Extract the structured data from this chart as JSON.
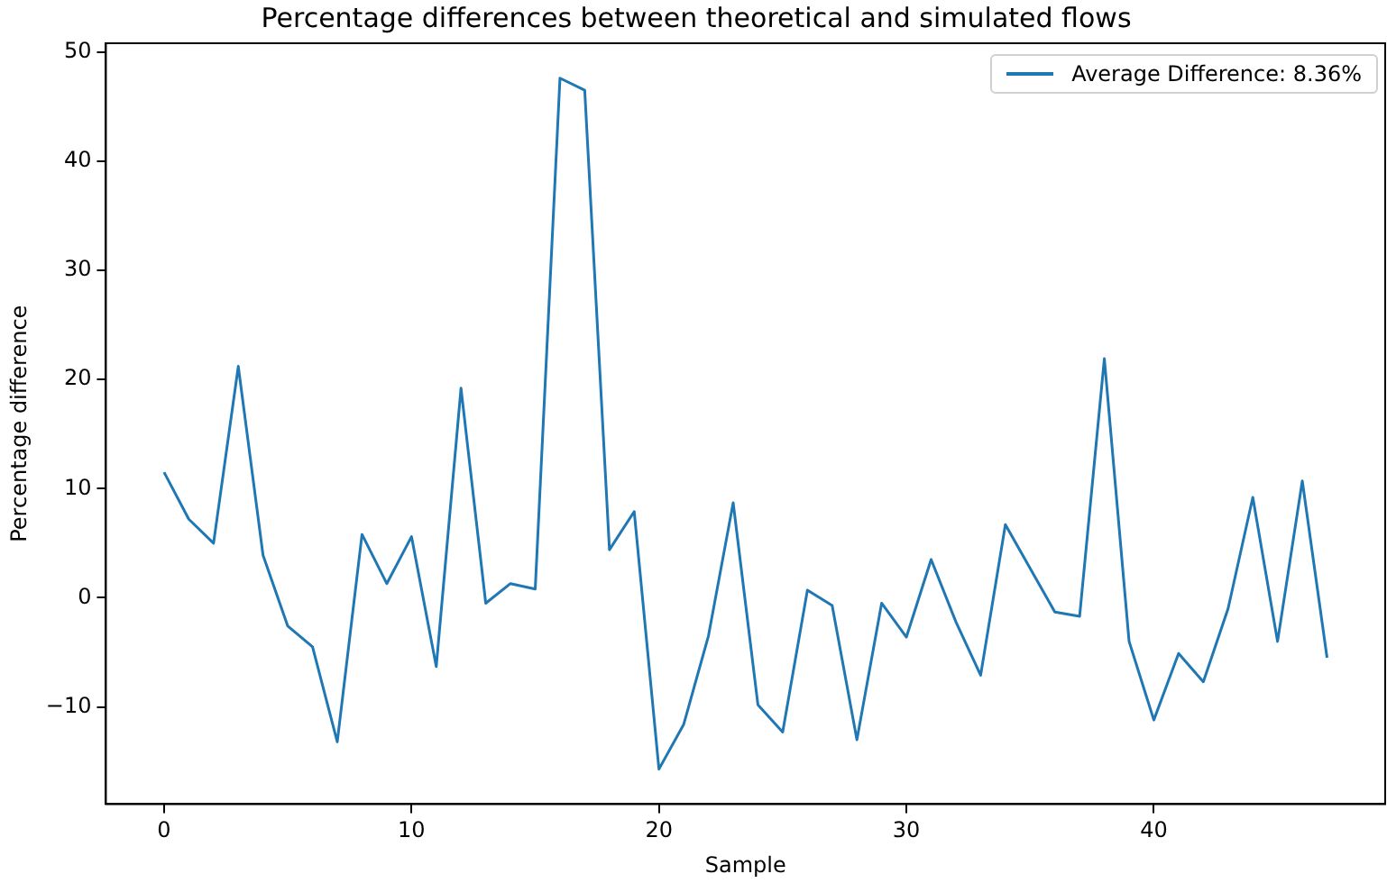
{
  "chart_data": {
    "type": "line",
    "title": "Percentage differences between theoretical and simulated flows",
    "xlabel": "Sample",
    "ylabel": "Percentage difference",
    "x": [
      0,
      1,
      2,
      3,
      4,
      5,
      6,
      7,
      8,
      9,
      10,
      11,
      12,
      13,
      14,
      15,
      16,
      17,
      18,
      19,
      20,
      21,
      22,
      23,
      24,
      25,
      26,
      27,
      28,
      29,
      30,
      31,
      32,
      33,
      34,
      35,
      36,
      37,
      38,
      39,
      40,
      41,
      42,
      43,
      44,
      45,
      46,
      47
    ],
    "series": [
      {
        "name": "Average Difference: 8.36%",
        "color": "#1f77b4",
        "values": [
          11.5,
          7.2,
          5.0,
          21.2,
          3.9,
          -2.6,
          -4.5,
          -13.2,
          5.8,
          1.3,
          5.6,
          -6.3,
          19.2,
          -0.5,
          1.3,
          0.8,
          47.6,
          46.5,
          4.4,
          7.9,
          -15.7,
          -11.6,
          -3.5,
          8.7,
          -9.8,
          -12.3,
          0.7,
          -0.7,
          -13.0,
          -0.5,
          -3.6,
          3.5,
          -2.2,
          -7.1,
          6.7,
          2.7,
          -1.3,
          -1.7,
          21.9,
          -4.0,
          -11.2,
          -5.1,
          -7.7,
          -1.0,
          9.2,
          -4.0,
          10.7,
          -5.5
        ]
      }
    ],
    "xlim": [
      -2.35,
      49.35
    ],
    "xticks": [
      0,
      10,
      20,
      30,
      40
    ],
    "ylim": [
      -18.9,
      50.8
    ],
    "yticks": [
      -10,
      0,
      10,
      20,
      30,
      40,
      50
    ],
    "grid": false,
    "legend": "top right",
    "marker": "none",
    "line_style": "solid"
  }
}
